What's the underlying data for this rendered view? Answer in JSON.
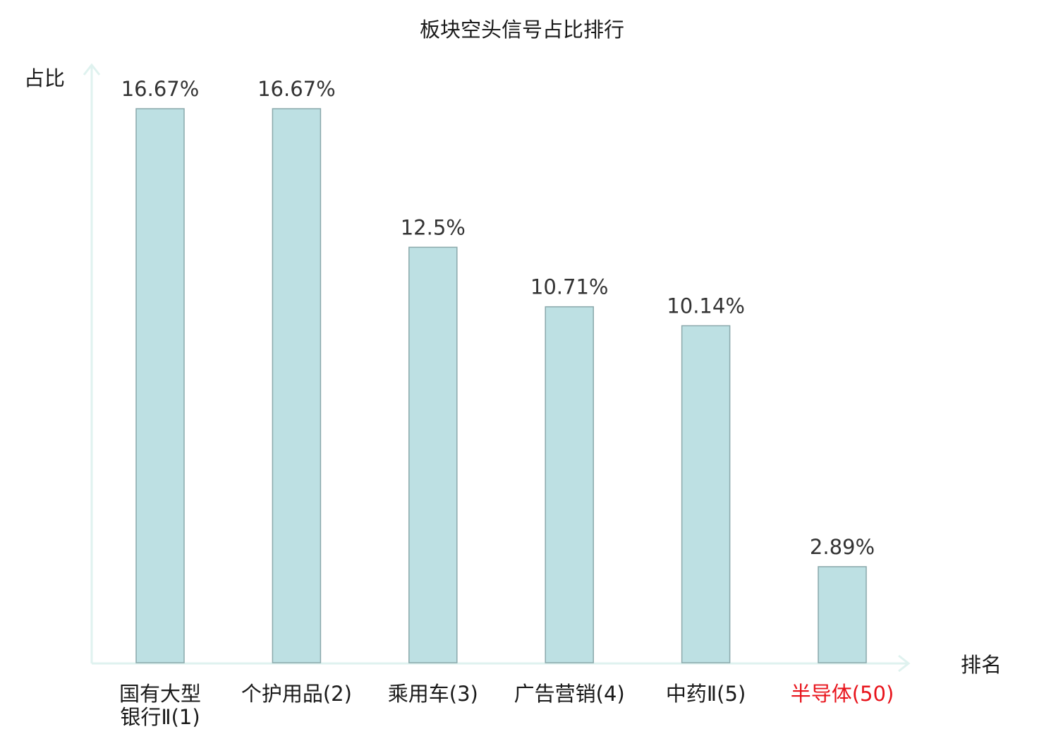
{
  "chart_data": {
    "type": "bar",
    "title": "板块空头信号占比排行",
    "xlabel": "排名",
    "ylabel": "占比",
    "categories": [
      [
        "国有大型",
        "银行Ⅱ(1)"
      ],
      [
        "个护用品(2)"
      ],
      [
        "乘用车(3)"
      ],
      [
        "广告营销(4)"
      ],
      [
        "中药Ⅱ(5)"
      ],
      [
        "半导体(50)"
      ]
    ],
    "values": [
      16.67,
      16.67,
      12.5,
      10.71,
      10.14,
      2.89
    ],
    "value_labels": [
      "16.67%",
      "16.67%",
      "12.5%",
      "10.71%",
      "10.14%",
      "2.89%"
    ],
    "highlight_index": 5,
    "ylim": [
      0,
      16.67
    ],
    "grid": false,
    "colors": {
      "bar_fill": "#bde0e3",
      "bar_stroke": "#8aa8ab",
      "axis": "#dff2ef",
      "highlight_text": "#e8141c"
    }
  }
}
